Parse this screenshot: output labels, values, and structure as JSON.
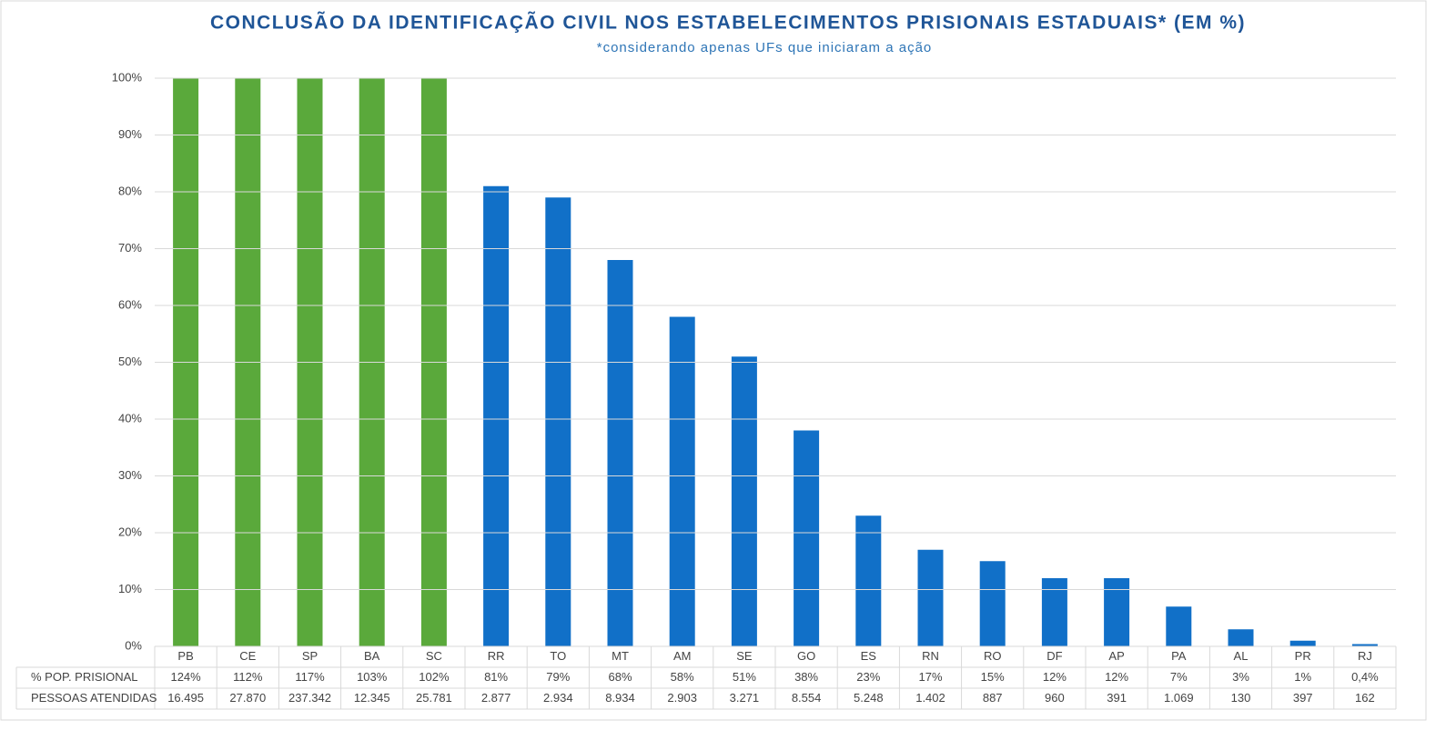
{
  "chart_data": {
    "type": "bar",
    "title": "CONCLUSÃO DA IDENTIFICAÇÃO CIVIL NOS ESTABELECIMENTOS PRISIONAIS ESTADUAIS* (EM %)",
    "subtitle": "*considerando apenas UFs que iniciaram a ação",
    "categories": [
      "PB",
      "CE",
      "SP",
      "BA",
      "SC",
      "RR",
      "TO",
      "MT",
      "AM",
      "SE",
      "GO",
      "ES",
      "RN",
      "RO",
      "DF",
      "AP",
      "PA",
      "AL",
      "PR",
      "RJ"
    ],
    "series": [
      {
        "name": "% POP. PRISIONAL",
        "colors": [
          "#5aa93b",
          "#5aa93b",
          "#5aa93b",
          "#5aa93b",
          "#5aa93b",
          "#1170c8",
          "#1170c8",
          "#1170c8",
          "#1170c8",
          "#1170c8",
          "#1170c8",
          "#1170c8",
          "#1170c8",
          "#1170c8",
          "#1170c8",
          "#1170c8",
          "#1170c8",
          "#1170c8",
          "#1170c8",
          "#1170c8"
        ],
        "values": [
          124,
          112,
          117,
          103,
          102,
          81,
          79,
          68,
          58,
          51,
          38,
          23,
          17,
          15,
          12,
          12,
          7,
          3,
          1,
          0.4
        ],
        "value_labels": [
          "124%",
          "112%",
          "117%",
          "103%",
          "102%",
          "81%",
          "79%",
          "68%",
          "58%",
          "51%",
          "38%",
          "23%",
          "17%",
          "15%",
          "12%",
          "12%",
          "7%",
          "3%",
          "1%",
          "0,4%"
        ]
      }
    ],
    "table_rows": [
      {
        "name": "PESSOAS ATENDIDAS",
        "values": [
          16495,
          27870,
          237342,
          12345,
          25781,
          2877,
          2934,
          8934,
          2903,
          3271,
          8554,
          5248,
          1402,
          887,
          960,
          391,
          1069,
          130,
          397,
          162
        ],
        "value_labels": [
          "16.495",
          "27.870",
          "237.342",
          "12.345",
          "25.781",
          "2.877",
          "2.934",
          "8.934",
          "2.903",
          "3.271",
          "8.554",
          "5.248",
          "1.402",
          "887",
          "960",
          "391",
          "1.069",
          "130",
          "397",
          "162"
        ]
      }
    ],
    "ylim": [
      0,
      100
    ],
    "yticks": [
      {
        "value": 0,
        "label": "0%"
      },
      {
        "value": 10,
        "label": "10%"
      },
      {
        "value": 20,
        "label": "20%"
      },
      {
        "value": 30,
        "label": "30%"
      },
      {
        "value": 40,
        "label": "40%"
      },
      {
        "value": 50,
        "label": "50%"
      },
      {
        "value": 60,
        "label": "60%"
      },
      {
        "value": 70,
        "label": "70%"
      },
      {
        "value": 80,
        "label": "80%"
      },
      {
        "value": 90,
        "label": "90%"
      },
      {
        "value": 100,
        "label": "100%"
      }
    ],
    "grid": true
  }
}
